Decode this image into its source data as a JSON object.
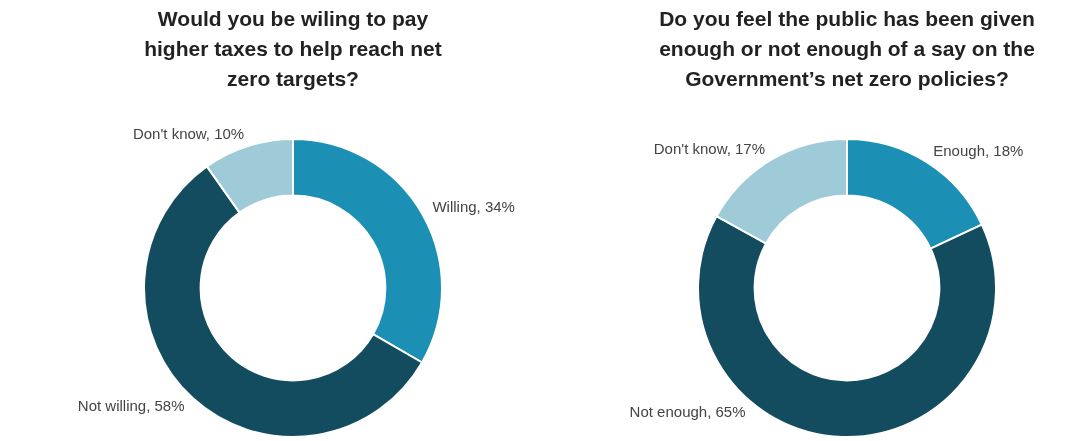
{
  "chart_data": [
    {
      "type": "donut",
      "title": "Would you be wiling to pay higher taxes to help reach net zero targets?",
      "categories": [
        "Willing",
        "Not willing",
        "Don't know"
      ],
      "values": [
        34,
        58,
        10
      ],
      "colors": [
        "#1b8fb4",
        "#134c5f",
        "#9fcbd8"
      ],
      "value_labels": [
        "34%",
        "58%",
        "10%"
      ],
      "legend": false
    },
    {
      "type": "donut",
      "title": "Do you feel the public has been given enough or not enough of a say on the Government’s net zero policies?",
      "categories": [
        "Enough",
        "Not enough",
        "Don't know"
      ],
      "values": [
        18,
        65,
        17
      ],
      "colors": [
        "#1b8fb4",
        "#134c5f",
        "#9fcbd8"
      ],
      "value_labels": [
        "18%",
        "65%",
        "17%"
      ],
      "legend": false
    }
  ]
}
